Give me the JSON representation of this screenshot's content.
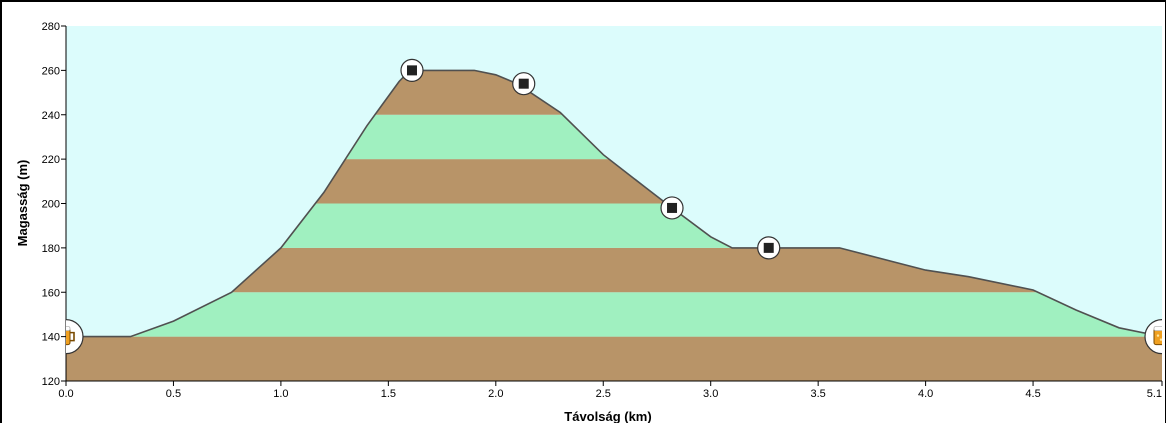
{
  "chart_data": {
    "type": "area",
    "title": "",
    "xlabel": "Távolság  (km)",
    "ylabel": "Magasság (m)",
    "xlim": [
      0.0,
      5.1
    ],
    "ylim": [
      120,
      280
    ],
    "x_ticks": [
      "0.0",
      "0.5",
      "1.0",
      "1.5",
      "2.0",
      "2.5",
      "3.0",
      "3.5",
      "4.0",
      "4.5",
      "5.1"
    ],
    "x_tick_values": [
      0.0,
      0.5,
      1.0,
      1.5,
      2.0,
      2.5,
      3.0,
      3.5,
      4.0,
      4.5,
      5.1
    ],
    "y_ticks": [
      "120",
      "140",
      "160",
      "180",
      "200",
      "220",
      "240",
      "260",
      "280"
    ],
    "y_tick_values": [
      120,
      140,
      160,
      180,
      200,
      220,
      240,
      260,
      280
    ],
    "band_step": 20,
    "colors": {
      "sky": "#dcfcfc",
      "band_brown": "#b89468",
      "band_green": "#a0f0c0",
      "outline": "#505050"
    },
    "profile": {
      "x": [
        0.0,
        0.3,
        0.5,
        0.77,
        1.0,
        1.2,
        1.4,
        1.55,
        1.6,
        1.9,
        2.0,
        2.1,
        2.3,
        2.5,
        2.7,
        2.82,
        3.0,
        3.1,
        3.3,
        3.6,
        3.8,
        4.0,
        4.2,
        4.5,
        4.7,
        4.9,
        5.1
      ],
      "y": [
        140,
        140,
        147,
        160,
        180,
        205,
        235,
        255,
        260,
        260,
        258,
        254,
        241,
        222,
        207,
        198,
        185,
        180,
        180,
        180,
        175,
        170,
        167,
        161,
        152,
        144,
        140
      ]
    },
    "waypoints": [
      {
        "x": 0.0,
        "y": 140,
        "icon": "beer-mug-icon"
      },
      {
        "x": 1.61,
        "y": 260,
        "icon": "square-marker-icon"
      },
      {
        "x": 2.13,
        "y": 254,
        "icon": "square-marker-icon"
      },
      {
        "x": 2.82,
        "y": 198,
        "icon": "square-marker-icon"
      },
      {
        "x": 3.27,
        "y": 180,
        "icon": "square-marker-icon"
      },
      {
        "x": 5.1,
        "y": 140,
        "icon": "beer-mug-icon"
      }
    ],
    "grid": false,
    "legend": "none"
  }
}
